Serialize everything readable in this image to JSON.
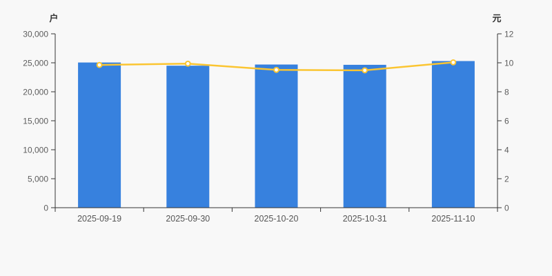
{
  "chart_data": {
    "type": "bar",
    "combo": [
      "bar",
      "line"
    ],
    "title": "",
    "categories": [
      "2025-09-19",
      "2025-09-30",
      "2025-10-20",
      "2025-10-31",
      "2025-11-10"
    ],
    "left_axis": {
      "label": "户",
      "min": 0,
      "max": 30000,
      "tick_step": 5000,
      "tick_labels": [
        "0",
        "5,000",
        "10,000",
        "15,000",
        "20,000",
        "25,000",
        "30,000"
      ]
    },
    "right_axis": {
      "label": "元",
      "min": 0,
      "max": 12,
      "tick_step": 2,
      "tick_labels": [
        "0",
        "2",
        "4",
        "6",
        "8",
        "10",
        "12"
      ]
    },
    "series": [
      {
        "type": "bar",
        "axis": "left",
        "unit": "户",
        "color": "#3781de",
        "values": [
          25050,
          24500,
          24700,
          24650,
          25300
        ]
      },
      {
        "type": "line",
        "axis": "right",
        "unit": "元",
        "color": "#fbc531",
        "marker": "hollow-circle",
        "marker_fill": "#ffffff",
        "values": [
          9.85,
          9.94,
          9.51,
          9.48,
          10.03
        ]
      }
    ],
    "grid": false,
    "legend": "none",
    "background": "#f8f8f8",
    "colors": {
      "bar": "#3781de",
      "line": "#fbc531",
      "axis": "#333333",
      "tick_text": "#5c5c5c"
    }
  }
}
